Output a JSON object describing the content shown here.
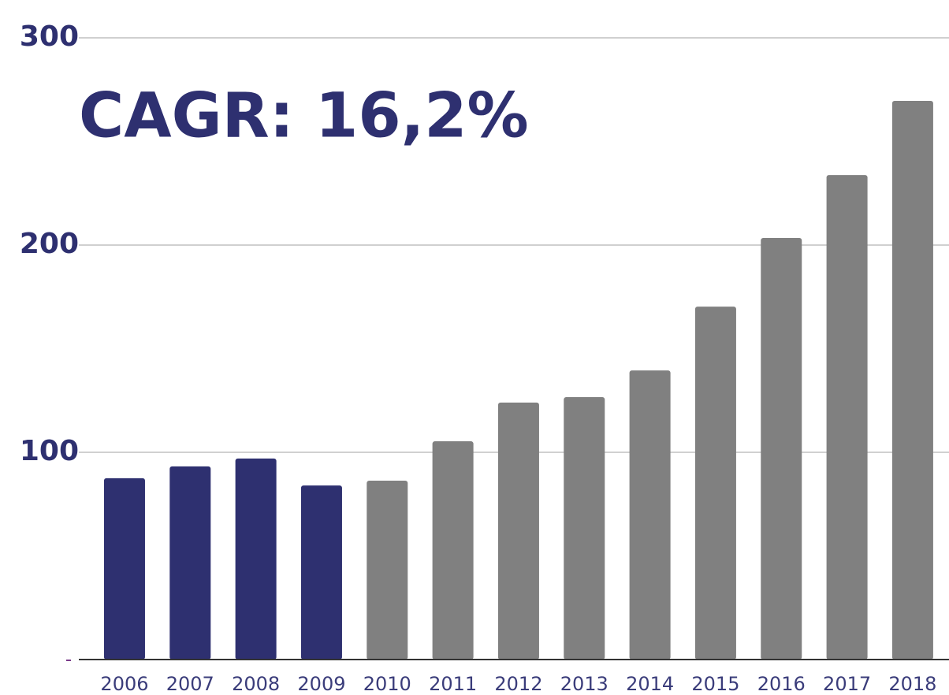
{
  "chart_data": {
    "type": "bar",
    "annotation": "CAGR: 16,2%",
    "categories": [
      "2006",
      "2007",
      "2008",
      "2009",
      "2010",
      "2011",
      "2012",
      "2013",
      "2014",
      "2015",
      "2016",
      "2017",
      "2018"
    ],
    "values": [
      87.5,
      93.2,
      97,
      84,
      86.3,
      105.3,
      124,
      126.6,
      139.5,
      170.3,
      203.4,
      233.8,
      269.6
    ],
    "colors": [
      "#2e3070",
      "#2e3070",
      "#2e3070",
      "#2e3070",
      "#808080",
      "#808080",
      "#808080",
      "#808080",
      "#808080",
      "#808080",
      "#808080",
      "#808080",
      "#808080"
    ],
    "ylim": [
      0,
      300
    ],
    "yticks": [
      100,
      200,
      300
    ],
    "grid": true
  }
}
